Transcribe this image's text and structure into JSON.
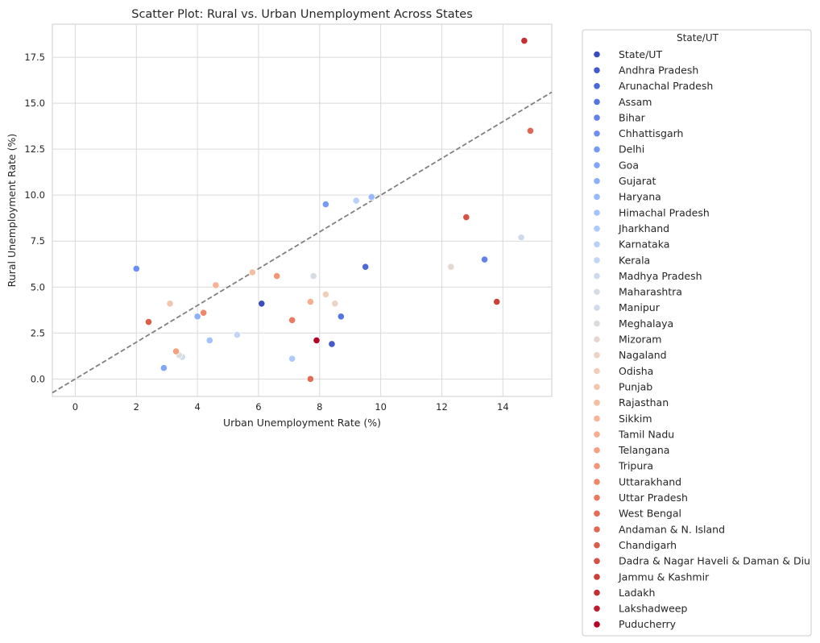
{
  "chart_data": {
    "type": "scatter",
    "title": "Scatter Plot: Rural vs. Urban Unemployment Across States",
    "xlabel": "Urban Unemployment Rate (%)",
    "ylabel": "Rural Unemployment Rate (%)",
    "xlim": [
      -0.75,
      15.6
    ],
    "ylim": [
      -0.95,
      19.3
    ],
    "x_ticks": [
      0,
      2,
      4,
      6,
      8,
      10,
      12,
      14
    ],
    "y_ticks": [
      0.0,
      2.5,
      5.0,
      7.5,
      10.0,
      12.5,
      15.0,
      17.5
    ],
    "x_tick_labels": [
      "0",
      "2",
      "4",
      "6",
      "8",
      "10",
      "12",
      "14"
    ],
    "y_tick_labels": [
      "0.0",
      "2.5",
      "5.0",
      "7.5",
      "10.0",
      "12.5",
      "15.0",
      "17.5"
    ],
    "grid": true,
    "reference_line": {
      "style": "dashed",
      "color": "#808080",
      "slope": 1,
      "intercept": 0
    },
    "legend": {
      "title": "State/UT",
      "placement": "outside right"
    },
    "points": [
      {
        "label": "State/UT",
        "x": 6.1,
        "y": 4.1,
        "color": "#3b4cc0"
      },
      {
        "label": "Andhra Pradesh",
        "x": 8.4,
        "y": 1.9,
        "color": "#445acc"
      },
      {
        "label": "Arunachal Pradesh",
        "x": 9.5,
        "y": 6.1,
        "color": "#4d68d7"
      },
      {
        "label": "Assam",
        "x": 8.7,
        "y": 3.4,
        "color": "#5775e1"
      },
      {
        "label": "Bihar",
        "x": 13.4,
        "y": 6.5,
        "color": "#6282ea"
      },
      {
        "label": "Chhattisgarh",
        "x": 2.0,
        "y": 6.0,
        "color": "#6c8ff1"
      },
      {
        "label": "Delhi",
        "x": 8.2,
        "y": 9.5,
        "color": "#779af7"
      },
      {
        "label": "Goa",
        "x": 2.9,
        "y": 0.6,
        "color": "#82a6fb"
      },
      {
        "label": "Gujarat",
        "x": 4.0,
        "y": 3.4,
        "color": "#8db0fe"
      },
      {
        "label": "Haryana",
        "x": 9.7,
        "y": 9.9,
        "color": "#98b9ff"
      },
      {
        "label": "Himachal Pradesh",
        "x": 4.4,
        "y": 2.1,
        "color": "#a3c2fe"
      },
      {
        "label": "Jharkhand",
        "x": 7.1,
        "y": 1.1,
        "color": "#aec9fc"
      },
      {
        "label": "Karnataka",
        "x": 9.2,
        "y": 9.7,
        "color": "#b9d0f9"
      },
      {
        "label": "Kerala",
        "x": 5.3,
        "y": 2.4,
        "color": "#c3d5f4"
      },
      {
        "label": "Madhya Pradesh",
        "x": 3.5,
        "y": 1.2,
        "color": "#cdd9ec"
      },
      {
        "label": "Maharashtra",
        "x": 7.8,
        "y": 5.6,
        "color": "#d6dce4"
      },
      {
        "label": "Manipur",
        "x": 14.6,
        "y": 7.7,
        "color": "#cfdaea"
      },
      {
        "label": "Meghalaya",
        "x": 3.4,
        "y": 1.3,
        "color": "#dddcdc"
      },
      {
        "label": "Mizoram",
        "x": 12.3,
        "y": 6.1,
        "color": "#e5d8d1"
      },
      {
        "label": "Nagaland",
        "x": 8.5,
        "y": 4.1,
        "color": "#ebd3c6"
      },
      {
        "label": "Odisha",
        "x": 8.2,
        "y": 4.6,
        "color": "#f1cdba"
      },
      {
        "label": "Punjab",
        "x": 3.1,
        "y": 4.1,
        "color": "#f4c5ad"
      },
      {
        "label": "Rajasthan",
        "x": 5.8,
        "y": 5.8,
        "color": "#f6bea0"
      },
      {
        "label": "Sikkim",
        "x": 4.6,
        "y": 5.1,
        "color": "#f7b596"
      },
      {
        "label": "Tamil Nadu",
        "x": 7.7,
        "y": 4.2,
        "color": "#f7ad90"
      },
      {
        "label": "Telangana",
        "x": 3.3,
        "y": 1.5,
        "color": "#f5a081"
      },
      {
        "label": "Tripura",
        "x": 6.6,
        "y": 5.6,
        "color": "#f39577"
      },
      {
        "label": "Uttarakhand",
        "x": 4.2,
        "y": 3.6,
        "color": "#ef886b"
      },
      {
        "label": "Uttar Pradesh",
        "x": 7.1,
        "y": 3.2,
        "color": "#ea7b60"
      },
      {
        "label": "West Bengal",
        "x": 7.7,
        "y": 0.0,
        "color": "#e36c55"
      },
      {
        "label": "Andaman & N. Island",
        "x": 14.9,
        "y": 13.5,
        "color": "#e06754"
      },
      {
        "label": "Chandigarh",
        "x": 2.4,
        "y": 3.1,
        "color": "#dc5d4a"
      },
      {
        "label": "Dadra & Nagar Haveli & Daman & Diu",
        "x": 12.8,
        "y": 8.8,
        "color": "#d65244"
      },
      {
        "label": "Jammu & Kashmir",
        "x": 13.8,
        "y": 4.2,
        "color": "#cc403a"
      },
      {
        "label": "Ladakh",
        "x": 14.7,
        "y": 18.4,
        "color": "#c43032"
      },
      {
        "label": "Lakshadweep",
        "x": 7.9,
        "y": 2.1,
        "color": "#bb1b2c"
      },
      {
        "label": "Puducherry",
        "x": 7.9,
        "y": 2.1,
        "color": "#b40426"
      }
    ]
  }
}
